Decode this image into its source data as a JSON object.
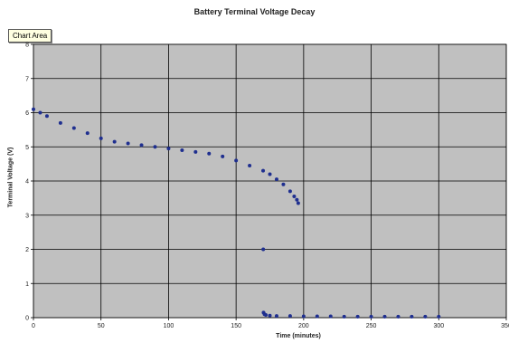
{
  "chart_data": {
    "type": "scatter",
    "title": "Battery Terminal Voltage Decay",
    "xlabel": "Time (minutes)",
    "ylabel": "Terminal Voltage (V)",
    "xlim": [
      0,
      350
    ],
    "ylim": [
      0,
      8
    ],
    "x_ticks": [
      0,
      50,
      100,
      150,
      200,
      250,
      300,
      350
    ],
    "y_ticks": [
      0,
      1,
      2,
      3,
      4,
      5,
      6,
      7,
      8
    ],
    "grid": true,
    "marker_color": "#1f2f8f",
    "plot_background": "#c0c0c0",
    "series": [
      {
        "x": [
          0,
          5,
          10,
          20,
          30,
          40,
          50,
          60,
          70,
          80,
          90,
          100,
          110,
          120,
          130,
          140,
          150,
          160,
          170,
          175,
          180,
          185,
          190,
          193,
          195,
          196,
          170.1,
          170.3,
          171,
          172,
          175,
          180,
          190,
          200,
          210,
          220,
          230,
          240,
          250,
          260,
          270,
          280,
          290,
          300
        ],
        "y": [
          6.1,
          6.0,
          5.9,
          5.7,
          5.55,
          5.4,
          5.25,
          5.15,
          5.1,
          5.05,
          5.0,
          4.95,
          4.9,
          4.85,
          4.8,
          4.72,
          4.6,
          4.45,
          4.3,
          4.2,
          4.05,
          3.9,
          3.7,
          3.55,
          3.45,
          3.35,
          2.0,
          0.15,
          0.1,
          0.08,
          0.06,
          0.05,
          0.05,
          0.04,
          0.04,
          0.04,
          0.03,
          0.03,
          0.03,
          0.03,
          0.03,
          0.03,
          0.03,
          0.03
        ]
      }
    ]
  },
  "tooltip": {
    "label": "Chart Area"
  }
}
